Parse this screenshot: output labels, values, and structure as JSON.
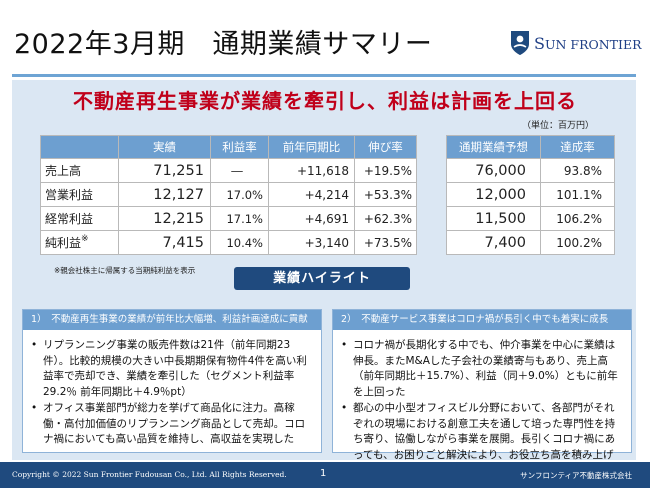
{
  "title": "2022年3月期　通期業績サマリー",
  "logo": {
    "text_big": "S",
    "text_small": "UN FRONTIER"
  },
  "headline": "不動産再生事業が業績を牽引し、利益は計画を上回る",
  "unit": "（単位：百万円）",
  "results": {
    "headers": [
      "実績",
      "利益率",
      "前年同期比",
      "伸び率"
    ],
    "rows": [
      {
        "label": "売上高",
        "value": "71,251",
        "margin": "―",
        "diff": "+11,618",
        "growth": "+19.5%"
      },
      {
        "label": "営業利益",
        "value": "12,127",
        "margin": "17.0%",
        "diff": "+4,214",
        "growth": "+53.3%"
      },
      {
        "label": "経常利益",
        "value": "12,215",
        "margin": "17.1%",
        "diff": "+4,691",
        "growth": "+62.3%"
      },
      {
        "label": "純利益",
        "label_sup": "※",
        "value": "7,415",
        "margin": "10.4%",
        "diff": "+3,140",
        "growth": "+73.5%"
      }
    ]
  },
  "forecast": {
    "headers": [
      "通期業績予想",
      "達成率"
    ],
    "rows": [
      {
        "value": "76,000",
        "rate": "93.8%"
      },
      {
        "value": "12,000",
        "rate": "101.1%"
      },
      {
        "value": "11,500",
        "rate": "106.2%"
      },
      {
        "value": "7,400",
        "rate": "100.2%"
      }
    ]
  },
  "footnote": "※親会社株主に帰属する当期純利益を表示",
  "highlights_label": "業績ハイライト",
  "box1": {
    "heading": "1）　不動産再生事業の業績が前年比大幅増、利益計画達成に貢献",
    "bullets": [
      "リプランニング事業の販売件数は21件（前年同期23件）。比較的規模の大きい中長期期保有物件4件を高い利益率で売却でき、業績を牽引した（セグメント利益率29.2％ 前年同期比＋4.9％pt）",
      "オフィス事業部門が総力を挙げて商品化に注力。高稼働・高付加価値のリプランニング商品として売却。コロナ禍においても高い品質を維持し、高収益を実現した"
    ]
  },
  "box2": {
    "heading": "2）　不動産サービス事業はコロナ禍が長引く中でも着実に成長",
    "bullets": [
      "コロナ禍が長期化する中でも、仲介事業を中心に業績は伸長。またM&Aした子会社の業績寄与もあり、売上高（前年同期比＋15.7%）、利益（同＋9.0%）ともに前年を上回った",
      "都心の中小型オフィスビル分野において、各部門がそれぞれの現場における創意工夫を通して培った専門性を持ち寄り、協働しながら事業を展開。長引くコロナ禍にあっても、お困りごと解決により、お役立ち高を積み上げた"
    ]
  },
  "footer": {
    "copyright": "Copyright © 2022 Sun Frontier Fudousan Co., Ltd. All Rights Reserved.",
    "page": "1",
    "company": "サンフロンティア不動産株式会社"
  },
  "colors": {
    "accent": "#1f4a7e",
    "header": "#6d9fd0",
    "panel": "#dbe7f3",
    "headline": "#c0001a"
  }
}
